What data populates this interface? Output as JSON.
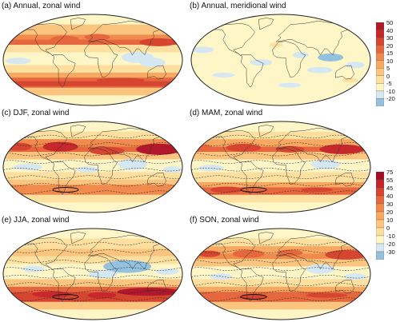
{
  "panels": [
    {
      "id": "a",
      "title": "(a) Annual, zonal wind",
      "field": "zonal-annual",
      "contours": false
    },
    {
      "id": "b",
      "title": "(b) Annual, meridional wind",
      "field": "meridional",
      "contours": false
    },
    {
      "id": "c",
      "title": "(c) DJF, zonal wind",
      "field": "zonal-djf",
      "contours": true
    },
    {
      "id": "d",
      "title": "(d) MAM, zonal wind",
      "field": "zonal-mam",
      "contours": true
    },
    {
      "id": "e",
      "title": "(e) JJA, zonal wind",
      "field": "zonal-jja",
      "contours": true
    },
    {
      "id": "f",
      "title": "(f) SON, zonal wind",
      "field": "zonal-son",
      "contours": true
    }
  ],
  "colorbars": [
    {
      "id": "top",
      "ticks": [
        "50",
        "40",
        "30",
        "20",
        "15",
        "10",
        "5",
        "0",
        "-5",
        "-10",
        "-20"
      ],
      "colors": [
        "#b2182b",
        "#c6282c",
        "#d6452f",
        "#e6673d",
        "#f18a4d",
        "#f7a962",
        "#fbc57f",
        "#fde0a0",
        "#fff6c8",
        "#d5e8f2",
        "#93c1de"
      ]
    },
    {
      "id": "bottom",
      "ticks": [
        "75",
        "55",
        "45",
        "40",
        "30",
        "20",
        "10",
        "0",
        "-10",
        "-20",
        "-30"
      ],
      "colors": [
        "#a50f26",
        "#c2272c",
        "#d6452f",
        "#e6673d",
        "#f18a4d",
        "#f7a962",
        "#fbc57f",
        "#fde0a0",
        "#fff6c8",
        "#d5e8f2",
        "#93c1de"
      ]
    }
  ],
  "palette": {
    "ocean_bg": "#fff6c8",
    "map_border": "#222222",
    "coast": "#333333"
  }
}
